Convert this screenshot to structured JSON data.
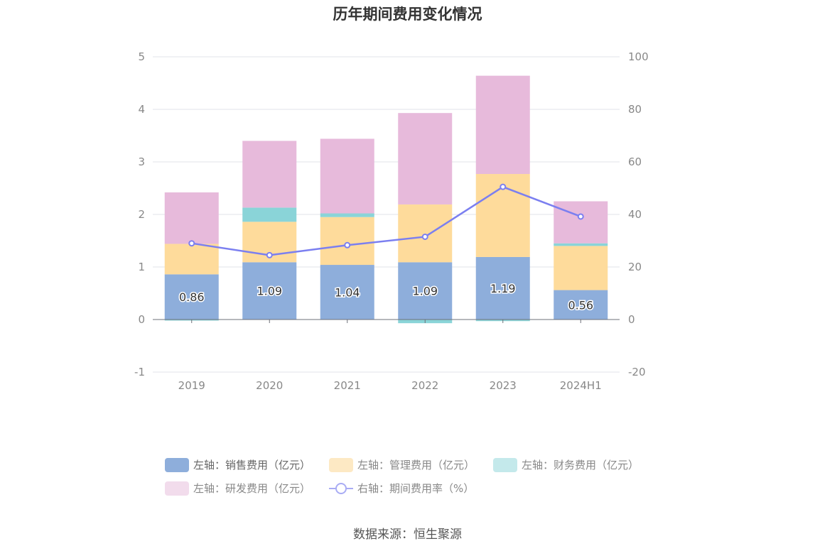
{
  "chart_data": {
    "type": "bar",
    "title": "历年期间费用变化情况",
    "categories": [
      "2019",
      "2020",
      "2021",
      "2022",
      "2023",
      "2024H1"
    ],
    "y_left": {
      "ticks": [
        -1,
        0,
        1,
        2,
        3,
        4,
        5
      ],
      "ylim": [
        -1,
        5
      ]
    },
    "y_right": {
      "ticks": [
        -20,
        0,
        20,
        40,
        60,
        80,
        100
      ],
      "ylim": [
        -20,
        100
      ]
    },
    "stacked": true,
    "grid": true,
    "legend_position": "bottom",
    "series": [
      {
        "name": "左轴：销售费用（亿元）",
        "axis": "left",
        "type": "bar",
        "color": "#8eaedb",
        "values": [
          0.86,
          1.09,
          1.04,
          1.09,
          1.19,
          0.56
        ],
        "labels": [
          "0.86",
          "1.09",
          "1.04",
          "1.09",
          "1.19",
          "0.56"
        ]
      },
      {
        "name": "左轴：管理费用（亿元）",
        "axis": "left",
        "type": "bar",
        "color": "#fedb9b",
        "values": [
          0.58,
          0.77,
          0.91,
          1.1,
          1.58,
          0.84
        ]
      },
      {
        "name": "左轴：财务费用（亿元）",
        "axis": "left",
        "type": "bar",
        "color": "#8ad4d8",
        "values": [
          -0.02,
          0.27,
          0.07,
          -0.07,
          -0.03,
          0.05
        ]
      },
      {
        "name": "左轴：研发费用（亿元）",
        "axis": "left",
        "type": "bar",
        "color": "#e7badb",
        "values": [
          0.98,
          1.27,
          1.42,
          1.74,
          1.87,
          0.8
        ]
      },
      {
        "name": "右轴：期间费用率（%）",
        "axis": "right",
        "type": "line",
        "color": "#7b7ff0",
        "values": [
          29.0,
          24.5,
          28.3,
          31.5,
          50.5,
          39.2
        ]
      }
    ],
    "source": "数据来源：恒生聚源"
  }
}
